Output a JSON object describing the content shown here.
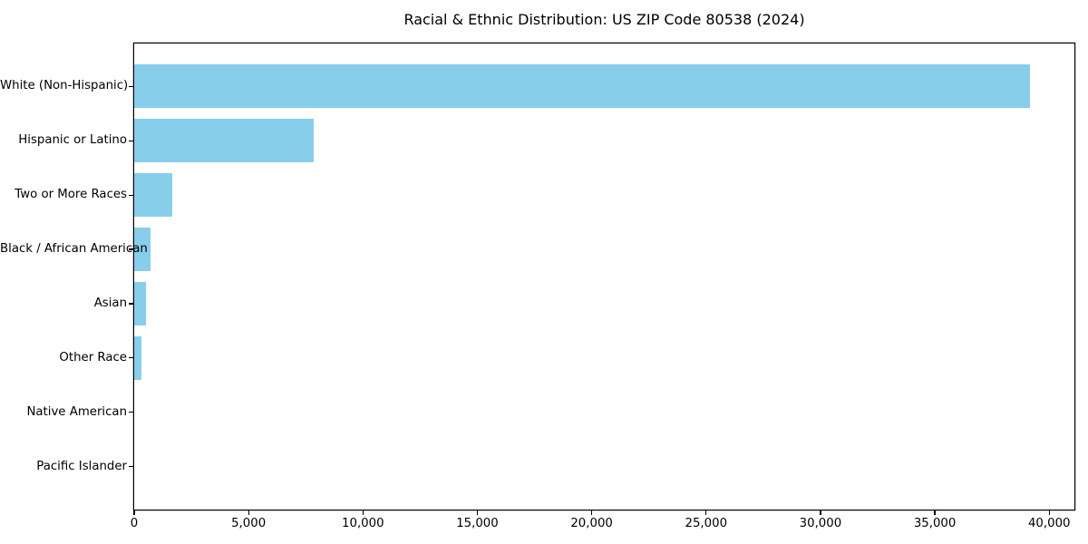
{
  "chart_data": {
    "type": "bar",
    "orientation": "horizontal",
    "title": "Racial & Ethnic Distribution: US ZIP Code 80538 (2024)",
    "categories": [
      "White (Non-Hispanic)",
      "Hispanic or Latino",
      "Two or More Races",
      "Black / African American",
      "Asian",
      "Other Race",
      "Native American",
      "Pacific Islander"
    ],
    "values": [
      39140,
      7830,
      1650,
      700,
      530,
      300,
      0,
      0
    ],
    "xlabel": "",
    "ylabel": "",
    "xlim": [
      0,
      41100
    ],
    "xticks": [
      0,
      5000,
      10000,
      15000,
      20000,
      25000,
      30000,
      35000,
      40000
    ],
    "xtick_labels": [
      "0",
      "5,000",
      "10,000",
      "15,000",
      "20,000",
      "25,000",
      "30,000",
      "35,000",
      "40,000"
    ],
    "bar_color": "#87CEEB",
    "frame_color": "#000000",
    "grid": false,
    "legend": null
  }
}
